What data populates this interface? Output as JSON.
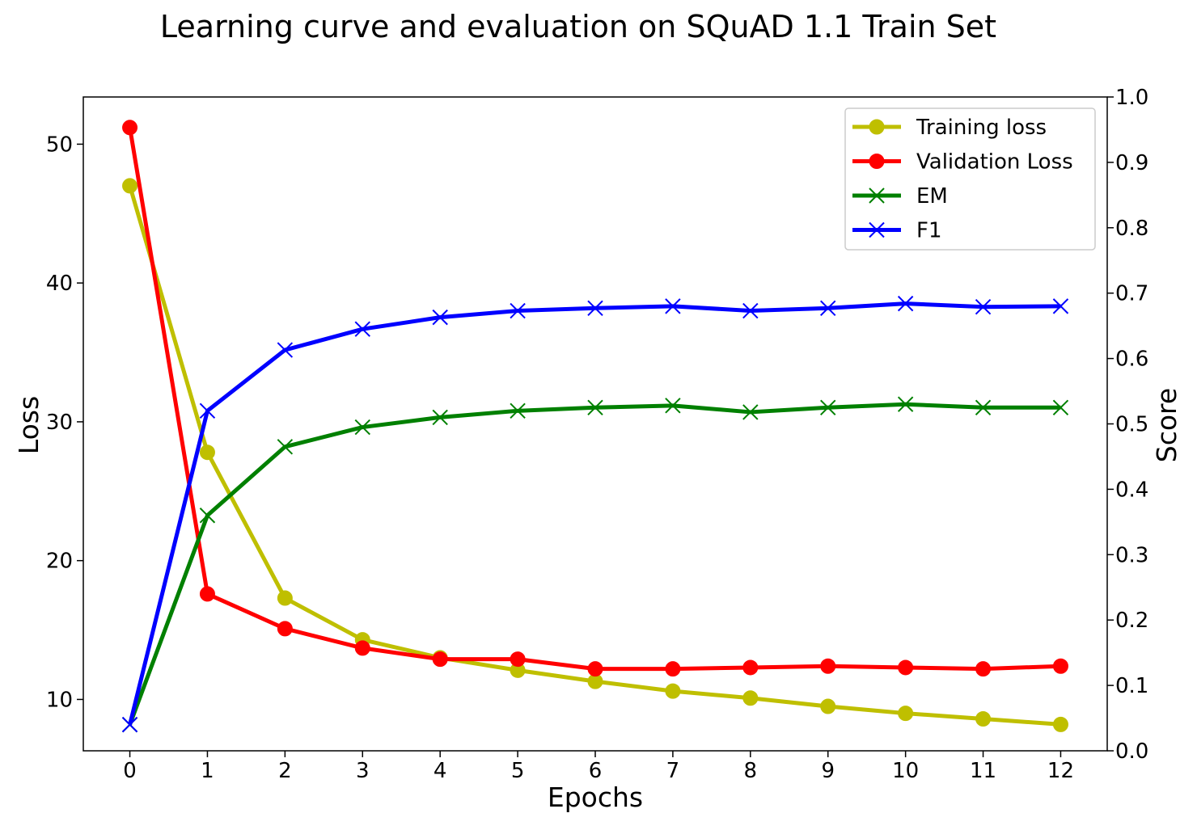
{
  "chart_data": {
    "type": "line",
    "title": "Learning curve and evaluation on SQuAD 1.1 Train Set",
    "xlabel": "Epochs",
    "ylabel_left": "Loss",
    "ylabel_right": "Score",
    "x": [
      0,
      1,
      2,
      3,
      4,
      5,
      6,
      7,
      8,
      9,
      10,
      11,
      12
    ],
    "x_ticks": [
      "0",
      "1",
      "2",
      "3",
      "4",
      "5",
      "6",
      "7",
      "8",
      "9",
      "10",
      "11",
      "12"
    ],
    "xlim": [
      -0.6,
      12.6
    ],
    "ylim_left": [
      6.3,
      53.4
    ],
    "yticks_left": [
      "10",
      "20",
      "30",
      "40",
      "50"
    ],
    "ylim_right": [
      0.0,
      1.0
    ],
    "yticks_right": [
      "0.0",
      "0.1",
      "0.2",
      "0.3",
      "0.4",
      "0.5",
      "0.6",
      "0.7",
      "0.8",
      "0.9",
      "1.0"
    ],
    "grid": false,
    "legend_position": "top-right",
    "series": [
      {
        "name": "Training loss",
        "axis": "left",
        "color": "#bfbf00",
        "marker": "circle",
        "values": [
          47.0,
          27.8,
          17.3,
          14.3,
          13.0,
          12.1,
          11.3,
          10.6,
          10.1,
          9.5,
          9.0,
          8.6,
          8.2
        ]
      },
      {
        "name": "Validation Loss",
        "axis": "left",
        "color": "#ff0000",
        "marker": "circle",
        "values": [
          51.2,
          17.6,
          15.1,
          13.7,
          12.9,
          12.9,
          12.2,
          12.2,
          12.3,
          12.4,
          12.3,
          12.2,
          12.4
        ]
      },
      {
        "name": "EM",
        "axis": "right",
        "color": "#008000",
        "marker": "x",
        "values": [
          0.04,
          0.36,
          0.465,
          0.495,
          0.51,
          0.52,
          0.525,
          0.528,
          0.518,
          0.525,
          0.53,
          0.525,
          0.525
        ]
      },
      {
        "name": "F1",
        "axis": "right",
        "color": "#0000ff",
        "marker": "x",
        "values": [
          0.04,
          0.52,
          0.613,
          0.645,
          0.663,
          0.673,
          0.677,
          0.68,
          0.673,
          0.677,
          0.684,
          0.679,
          0.68
        ]
      }
    ]
  }
}
